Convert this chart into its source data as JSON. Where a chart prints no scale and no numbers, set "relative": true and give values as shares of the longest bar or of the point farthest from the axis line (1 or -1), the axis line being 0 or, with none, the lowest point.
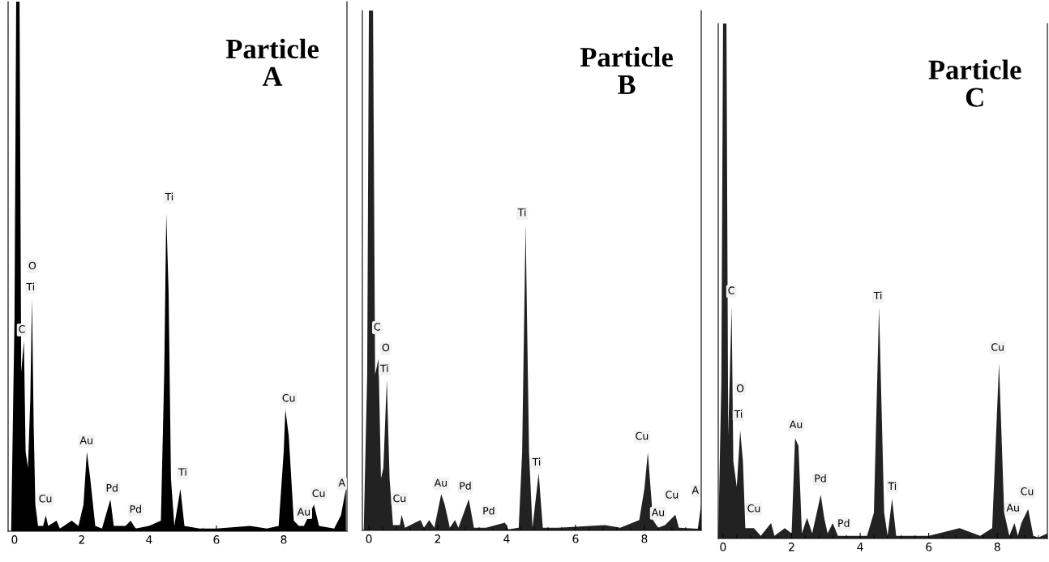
{
  "chart_data": [
    {
      "type": "area",
      "title": "Particle\nA",
      "relative": true,
      "tick_labels": "x",
      "xlim": [
        -0.19,
        9.88
      ],
      "xticks": [
        0,
        2,
        4,
        6,
        8
      ],
      "grid": false,
      "legend": false,
      "series": [
        {
          "color": "#000000",
          "x": [
            -0.1,
            0.0,
            0.05,
            0.15,
            0.2,
            0.28,
            0.33,
            0.4,
            0.47,
            0.52,
            0.57,
            0.62,
            0.7,
            0.85,
            0.93,
            1.0,
            1.25,
            1.35,
            1.7,
            1.9,
            2.05,
            2.15,
            2.25,
            2.4,
            2.6,
            2.85,
            2.95,
            3.3,
            3.45,
            3.6,
            4.0,
            4.35,
            4.45,
            4.51,
            4.58,
            4.65,
            4.75,
            4.93,
            5.05,
            5.5,
            6.0,
            7.0,
            7.5,
            7.85,
            8.0,
            8.05,
            8.15,
            8.3,
            8.45,
            8.6,
            8.9,
            9.05,
            9.5,
            9.7,
            9.85
          ],
          "values": [
            0,
            0.4,
            1.0,
            1.0,
            0.3,
            0.36,
            0.15,
            0.12,
            0.25,
            0.44,
            0.2,
            0.05,
            0.01,
            0.01,
            0.03,
            0.01,
            0.02,
            0.005,
            0.02,
            0.01,
            0.05,
            0.15,
            0.1,
            0.01,
            0.005,
            0.06,
            0.01,
            0.01,
            0.02,
            0.005,
            0.01,
            0.02,
            0.3,
            0.6,
            0.45,
            0.1,
            0.01,
            0.08,
            0.01,
            0.005,
            0.005,
            0.01,
            0.005,
            0.01,
            0.15,
            0.23,
            0.18,
            0.02,
            0.01,
            0.01,
            0.05,
            0.01,
            0.005,
            0.03,
            0.08
          ]
        }
      ],
      "annotations": [
        {
          "text": "C",
          "x": 0.22,
          "y": 0.38
        },
        {
          "text": "O",
          "x": 0.53,
          "y": 0.5
        },
        {
          "text": "Ti",
          "x": 0.48,
          "y": 0.46
        },
        {
          "text": "Ti",
          "x": 4.6,
          "y": 0.63
        },
        {
          "text": "Au",
          "x": 2.14,
          "y": 0.17
        },
        {
          "text": "Cu",
          "x": 0.92,
          "y": 0.06
        },
        {
          "text": "Pd",
          "x": 2.9,
          "y": 0.08
        },
        {
          "text": "Pd",
          "x": 3.6,
          "y": 0.04
        },
        {
          "text": "Ti",
          "x": 5.0,
          "y": 0.11
        },
        {
          "text": "Cu",
          "x": 8.15,
          "y": 0.25
        },
        {
          "text": "Au",
          "x": 8.6,
          "y": 0.035
        },
        {
          "text": "Cu",
          "x": 9.04,
          "y": 0.07
        },
        {
          "text": "A",
          "x": 9.73,
          "y": 0.09
        }
      ]
    },
    {
      "type": "area",
      "title": "Particle\nB",
      "relative": true,
      "tick_labels": "x",
      "xlim": [
        -0.19,
        9.65
      ],
      "xticks": [
        0,
        2,
        4,
        6,
        8
      ],
      "grid": false,
      "legend": false,
      "series": [
        {
          "color": "#222222",
          "x": [
            -0.15,
            -0.05,
            0.0,
            0.12,
            0.18,
            0.28,
            0.35,
            0.42,
            0.52,
            0.6,
            0.7,
            0.9,
            0.95,
            1.05,
            1.5,
            1.6,
            1.75,
            1.9,
            2.1,
            2.2,
            2.35,
            2.5,
            2.6,
            2.9,
            3.05,
            3.4,
            3.95,
            4.05,
            4.35,
            4.45,
            4.55,
            4.65,
            4.75,
            4.93,
            5.05,
            5.5,
            6.85,
            7.3,
            7.85,
            8.0,
            8.1,
            8.25,
            8.4,
            8.6,
            8.9,
            9.0,
            9.55,
            9.65
          ],
          "values": [
            0,
            0.3,
            1.0,
            1.0,
            0.3,
            0.33,
            0.1,
            0.12,
            0.29,
            0.1,
            0.01,
            0.01,
            0.03,
            0.005,
            0.02,
            0.005,
            0.02,
            0.005,
            0.07,
            0.05,
            0.005,
            0.02,
            0.005,
            0.06,
            0.005,
            0.005,
            0.015,
            0.002,
            0.005,
            0.15,
            0.59,
            0.15,
            0.005,
            0.11,
            0.005,
            0.005,
            0.01,
            0.005,
            0.02,
            0.08,
            0.15,
            0.02,
            0.005,
            0.01,
            0.03,
            0.005,
            0.003,
            0.05
          ]
        }
      ],
      "annotations": [
        {
          "text": "C",
          "x": 0.24,
          "y": 0.39
        },
        {
          "text": "O",
          "x": 0.49,
          "y": 0.35
        },
        {
          "text": "Ti",
          "x": 0.45,
          "y": 0.31
        },
        {
          "text": "Ti",
          "x": 4.45,
          "y": 0.61
        },
        {
          "text": "Cu",
          "x": 0.89,
          "y": 0.06
        },
        {
          "text": "Au",
          "x": 2.09,
          "y": 0.09
        },
        {
          "text": "Pd",
          "x": 2.8,
          "y": 0.084
        },
        {
          "text": "Pd",
          "x": 3.48,
          "y": 0.036
        },
        {
          "text": "Ti",
          "x": 4.87,
          "y": 0.13
        },
        {
          "text": "Cu",
          "x": 7.93,
          "y": 0.18
        },
        {
          "text": "Au",
          "x": 8.4,
          "y": 0.033
        },
        {
          "text": "Cu",
          "x": 8.8,
          "y": 0.067
        },
        {
          "text": "A",
          "x": 9.48,
          "y": 0.076
        }
      ]
    },
    {
      "type": "area",
      "title": "Particle\nC",
      "relative": true,
      "tick_labels": "x",
      "xlim": [
        -0.14,
        9.46
      ],
      "xticks": [
        0,
        2,
        4,
        6,
        8
      ],
      "grid": false,
      "legend": false,
      "series": [
        {
          "color": "#222222",
          "x": [
            -0.14,
            -0.05,
            0.0,
            0.1,
            0.15,
            0.25,
            0.3,
            0.4,
            0.5,
            0.58,
            0.65,
            0.9,
            1.1,
            1.4,
            1.5,
            1.8,
            2.0,
            2.1,
            2.2,
            2.3,
            2.45,
            2.6,
            2.85,
            2.95,
            3.05,
            3.2,
            3.35,
            3.9,
            4.2,
            4.4,
            4.55,
            4.7,
            4.8,
            4.93,
            5.05,
            6.0,
            6.9,
            7.5,
            7.85,
            8.05,
            8.2,
            8.35,
            8.5,
            8.6,
            8.7,
            8.9,
            9.05,
            9.2,
            9.46
          ],
          "values": [
            0,
            0.3,
            1.0,
            1.0,
            0.2,
            0.45,
            0.15,
            0.1,
            0.21,
            0.15,
            0.02,
            0.02,
            0.005,
            0.03,
            0.005,
            0.02,
            0.01,
            0.195,
            0.18,
            0.01,
            0.04,
            0.01,
            0.085,
            0.04,
            0.01,
            0.03,
            0.005,
            0.005,
            0.005,
            0.05,
            0.45,
            0.05,
            0.005,
            0.077,
            0.005,
            0.005,
            0.02,
            0.005,
            0.02,
            0.34,
            0.05,
            0.005,
            0.03,
            0.005,
            0.03,
            0.057,
            0.005,
            0.002,
            0.01
          ]
        }
      ],
      "annotations": [
        {
          "text": "C",
          "x": 0.24,
          "y": 0.48
        },
        {
          "text": "O",
          "x": 0.5,
          "y": 0.29
        },
        {
          "text": "Ti",
          "x": 0.45,
          "y": 0.24
        },
        {
          "text": "Ti",
          "x": 4.52,
          "y": 0.47
        },
        {
          "text": "Cu",
          "x": 0.9,
          "y": 0.057
        },
        {
          "text": "Au",
          "x": 2.13,
          "y": 0.22
        },
        {
          "text": "Pd",
          "x": 2.84,
          "y": 0.115
        },
        {
          "text": "Pd",
          "x": 3.52,
          "y": 0.028
        },
        {
          "text": "Ti",
          "x": 4.94,
          "y": 0.1
        },
        {
          "text": "Cu",
          "x": 8.01,
          "y": 0.37
        },
        {
          "text": "Au",
          "x": 8.46,
          "y": 0.058
        },
        {
          "text": "Cu",
          "x": 8.87,
          "y": 0.09
        }
      ]
    }
  ]
}
